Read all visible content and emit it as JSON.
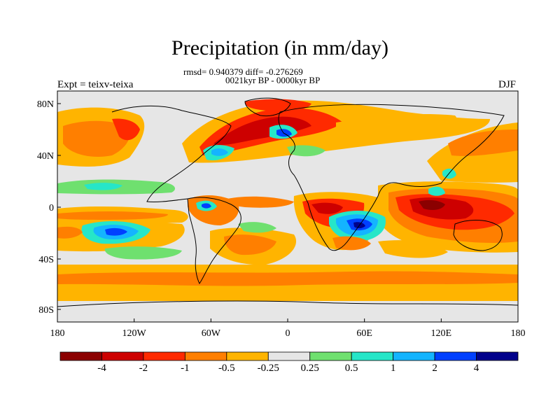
{
  "title": "Precipitation (in mm/day)",
  "stats": "rmsd= 0.940379 diff= -0.276269",
  "period": "0021kyr BP - 0000kyr BP",
  "experiment": "Expt = teixv-teixa",
  "season": "DJF",
  "axes": {
    "x_ticks": [
      "180",
      "120W",
      "60W",
      "0",
      "60E",
      "120E",
      "180"
    ],
    "y_ticks": [
      "80N",
      "40N",
      "0",
      "40S",
      "80S"
    ]
  },
  "colorbar": {
    "labels": [
      "-4",
      "-2",
      "-1",
      "-0.5",
      "-0.25",
      "0.25",
      "0.5",
      "1",
      "2",
      "4"
    ],
    "colors": [
      "#8b0000",
      "#cd0000",
      "#ff2a00",
      "#ff7f00",
      "#ffb400",
      "#e6e6e6",
      "#6fe06f",
      "#26e6c8",
      "#14b4ff",
      "#0040ff",
      "#00008b"
    ]
  },
  "colors": {
    "neutral": "#e6e6e6",
    "strong_dry": "#8b0000",
    "dry": "#cd0000",
    "mid_dry": "#ff2a00",
    "light_dry": "#ff7f00",
    "slight_dry": "#ffb400",
    "slight_wet": "#6fe06f",
    "light_wet": "#26e6c8",
    "mid_wet": "#14b4ff",
    "wet": "#0040ff",
    "strong_wet": "#00008b",
    "coast": "#000000"
  }
}
